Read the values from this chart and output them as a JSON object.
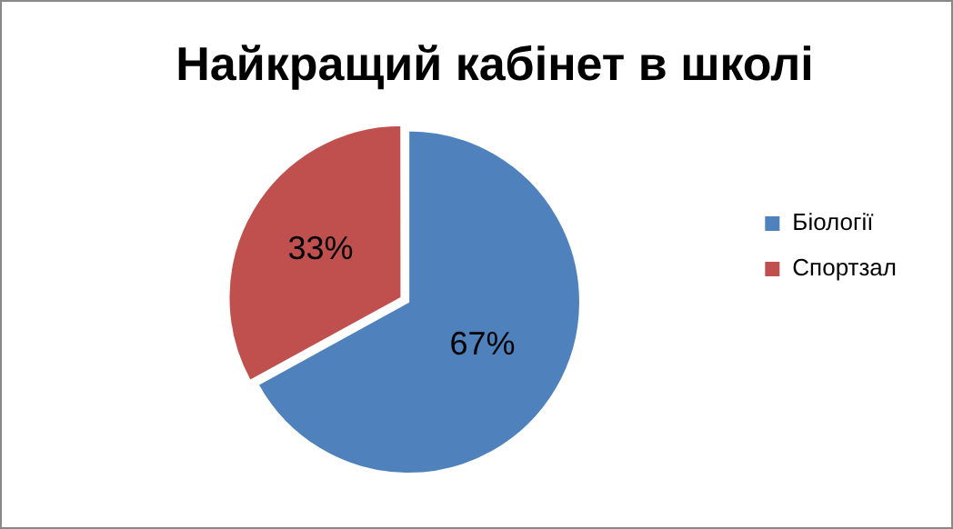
{
  "chart_data": {
    "type": "pie",
    "title": "Найкращий кабінет в школі",
    "categories": [
      "Біології",
      "Спортзал"
    ],
    "values": [
      67,
      33
    ],
    "colors": [
      "#4f81bd",
      "#c0504d"
    ],
    "value_labels": [
      "67%",
      "33%"
    ],
    "legend": "right"
  }
}
